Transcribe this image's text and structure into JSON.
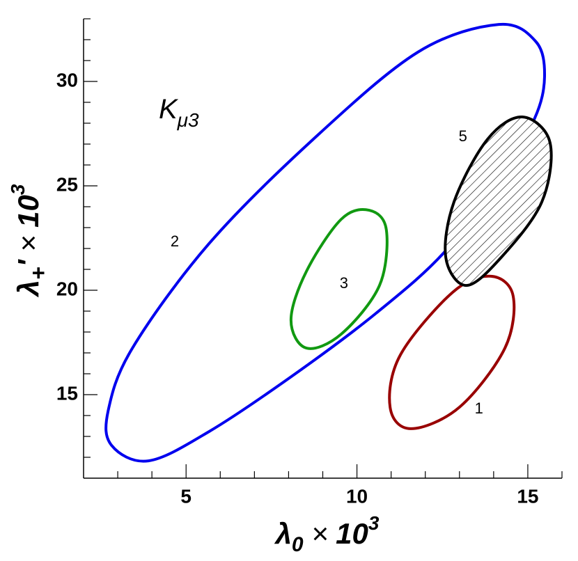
{
  "chart_data": {
    "type": "contour",
    "xlabel": {
      "symbol": "λ",
      "sub": "0",
      "times": "×",
      "base": "10",
      "sup": "3"
    },
    "ylabel": {
      "symbol": "λ",
      "sub": "+",
      "prime": "'",
      "times": "×",
      "base": "10",
      "sup": "3"
    },
    "annotation": {
      "main": "K",
      "sub": "μ3",
      "x": 4.2,
      "y": 28.6
    },
    "xlim": [
      2,
      16
    ],
    "ylim": [
      11,
      33
    ],
    "xticks": [
      5,
      10,
      15
    ],
    "yticks": [
      15,
      20,
      25,
      30
    ],
    "xminorticks": [
      3,
      4,
      6,
      7,
      8,
      9,
      11,
      12,
      13,
      14,
      16
    ],
    "yminorticks": [
      12,
      13,
      14,
      16,
      17,
      18,
      19,
      21,
      22,
      23,
      24,
      26,
      27,
      28,
      29,
      31,
      32,
      33
    ],
    "series": [
      {
        "name": "1",
        "color": "#990000",
        "hatch": false,
        "label_x": 13.57,
        "label_y": 14.3,
        "x": [
          13.92,
          14.57,
          14.33,
          13.0,
          11.58,
          10.97,
          11.27,
          12.8
        ],
        "y": [
          20.67,
          19.73,
          17.23,
          14.4,
          13.37,
          14.4,
          16.9,
          19.9
        ]
      },
      {
        "name": "2",
        "color": "#0000ee",
        "hatch": false,
        "label_x": 4.67,
        "label_y": 22.3,
        "x": [
          14.15,
          15.24,
          15.49,
          15.2,
          14.22,
          12.6,
          10.56,
          8.11,
          5.67,
          3.9,
          2.82,
          2.72,
          3.43,
          5.67,
          8.72,
          11.78
        ],
        "y": [
          32.73,
          31.9,
          30.23,
          28.23,
          25.57,
          21.9,
          18.9,
          15.9,
          13.23,
          11.83,
          12.57,
          14.23,
          17.23,
          22.23,
          27.23,
          31.4
        ]
      },
      {
        "name": "3",
        "color": "#119911",
        "hatch": false,
        "label_x": 9.62,
        "label_y": 20.3,
        "x": [
          10.36,
          10.86,
          10.66,
          9.54,
          8.52,
          8.07,
          8.52,
          9.54
        ],
        "y": [
          23.83,
          22.9,
          20.23,
          17.9,
          17.23,
          18.57,
          20.9,
          23.4
        ]
      },
      {
        "name": "5",
        "color": "#000000",
        "hatch": true,
        "label_x": 13.1,
        "label_y": 27.33,
        "x": [
          14.84,
          15.65,
          15.41,
          14.22,
          13.2,
          12.6,
          12.84,
          13.82
        ],
        "y": [
          28.3,
          27.07,
          24.23,
          21.57,
          20.23,
          21.57,
          24.23,
          27.23
        ]
      }
    ]
  }
}
